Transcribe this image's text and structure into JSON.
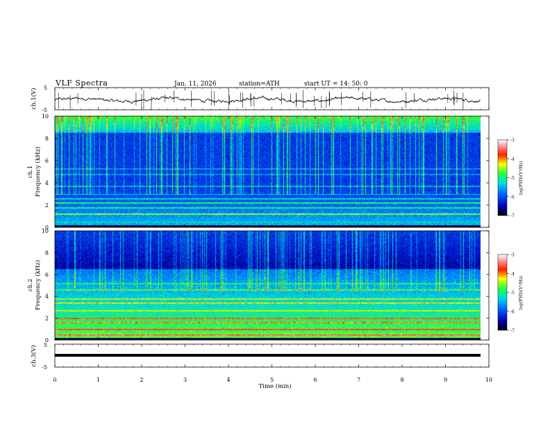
{
  "header": {
    "title": "VLF  Spectra",
    "date": "Jan. 11, 2026",
    "station": "station=ATH",
    "start": "start  UT  =   14: 50: 0"
  },
  "chart_data": [
    {
      "type": "line",
      "name": "ch1-voltage",
      "ylabel": "ch.1(V)",
      "yticks": [
        "5",
        "-5"
      ],
      "ylim": [
        -5,
        5
      ],
      "xlim": [
        0,
        10
      ],
      "baseline": 0,
      "trace_end_min": 9.8
    },
    {
      "type": "heatmap",
      "name": "ch1-spectrogram",
      "ylabel": "ch.1\nFrequency (kHz)",
      "ylim": [
        0,
        10
      ],
      "yticks": [
        "0",
        "2",
        "4",
        "6",
        "8",
        "10"
      ],
      "xlim": [
        0,
        10
      ],
      "data_end_min": 9.8,
      "colorbar": {
        "label": "log(PSD)(V²/Hz)",
        "ticks": [
          "-3",
          "-4",
          "-5",
          "-6",
          "-7"
        ],
        "range": [
          -7,
          -3
        ]
      }
    },
    {
      "type": "heatmap",
      "name": "ch2-spectrogram",
      "ylabel": "ch.2\nFrequency (kHz)",
      "ylim": [
        0,
        10
      ],
      "yticks": [
        "0",
        "2",
        "4",
        "6",
        "8",
        "10"
      ],
      "xlim": [
        0,
        10
      ],
      "data_end_min": 9.8,
      "colorbar": {
        "label": "log(PSD)(V²/Hz)",
        "ticks": [
          "-3",
          "-4",
          "-5",
          "-6",
          "-7"
        ],
        "range": [
          -7,
          -3
        ]
      }
    },
    {
      "type": "line",
      "name": "ch3-voltage",
      "ylabel": "ch.3(V)",
      "yticks": [
        "5",
        "-5"
      ],
      "ylim": [
        -5,
        5
      ],
      "xlim": [
        0,
        10
      ],
      "baseline": 0,
      "trace_end_min": 9.8
    }
  ],
  "xaxis": {
    "label": "Time  (min)",
    "ticks": [
      "0",
      "1",
      "2",
      "3",
      "4",
      "5",
      "6",
      "7",
      "8",
      "9",
      "10"
    ]
  },
  "colors": {
    "trace": "#000000",
    "background_band": "#0a1a9a"
  }
}
